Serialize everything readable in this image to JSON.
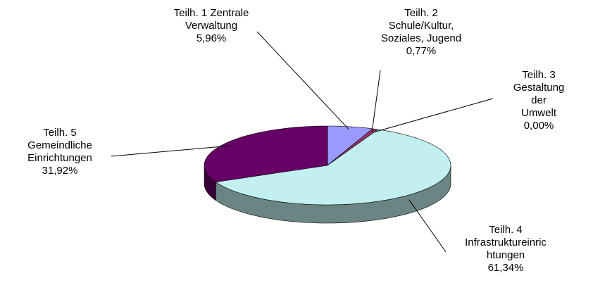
{
  "chart_data": {
    "type": "pie",
    "categories": [
      "Teilh. 1 Zentrale\nVerwaltung",
      "Teilh. 2\nSchule/Kultur,\nSoziales, Jugend",
      "Teilh. 3\nGestaltung der\nUmwelt",
      "Teilh. 4\nInfrastruktureinric\nhtungen",
      "Teilh. 5\nGemeindliche\nEinrichtungen"
    ],
    "values": [
      5.96,
      0.77,
      0.0,
      61.34,
      31.92
    ],
    "value_labels": [
      "5,96%",
      "0,77%",
      "0,00%",
      "61,34%",
      "31,92%"
    ],
    "colors": [
      "#9999ff",
      "#993366",
      "#ffffcc",
      "#c2f0f0",
      "#660066"
    ]
  }
}
